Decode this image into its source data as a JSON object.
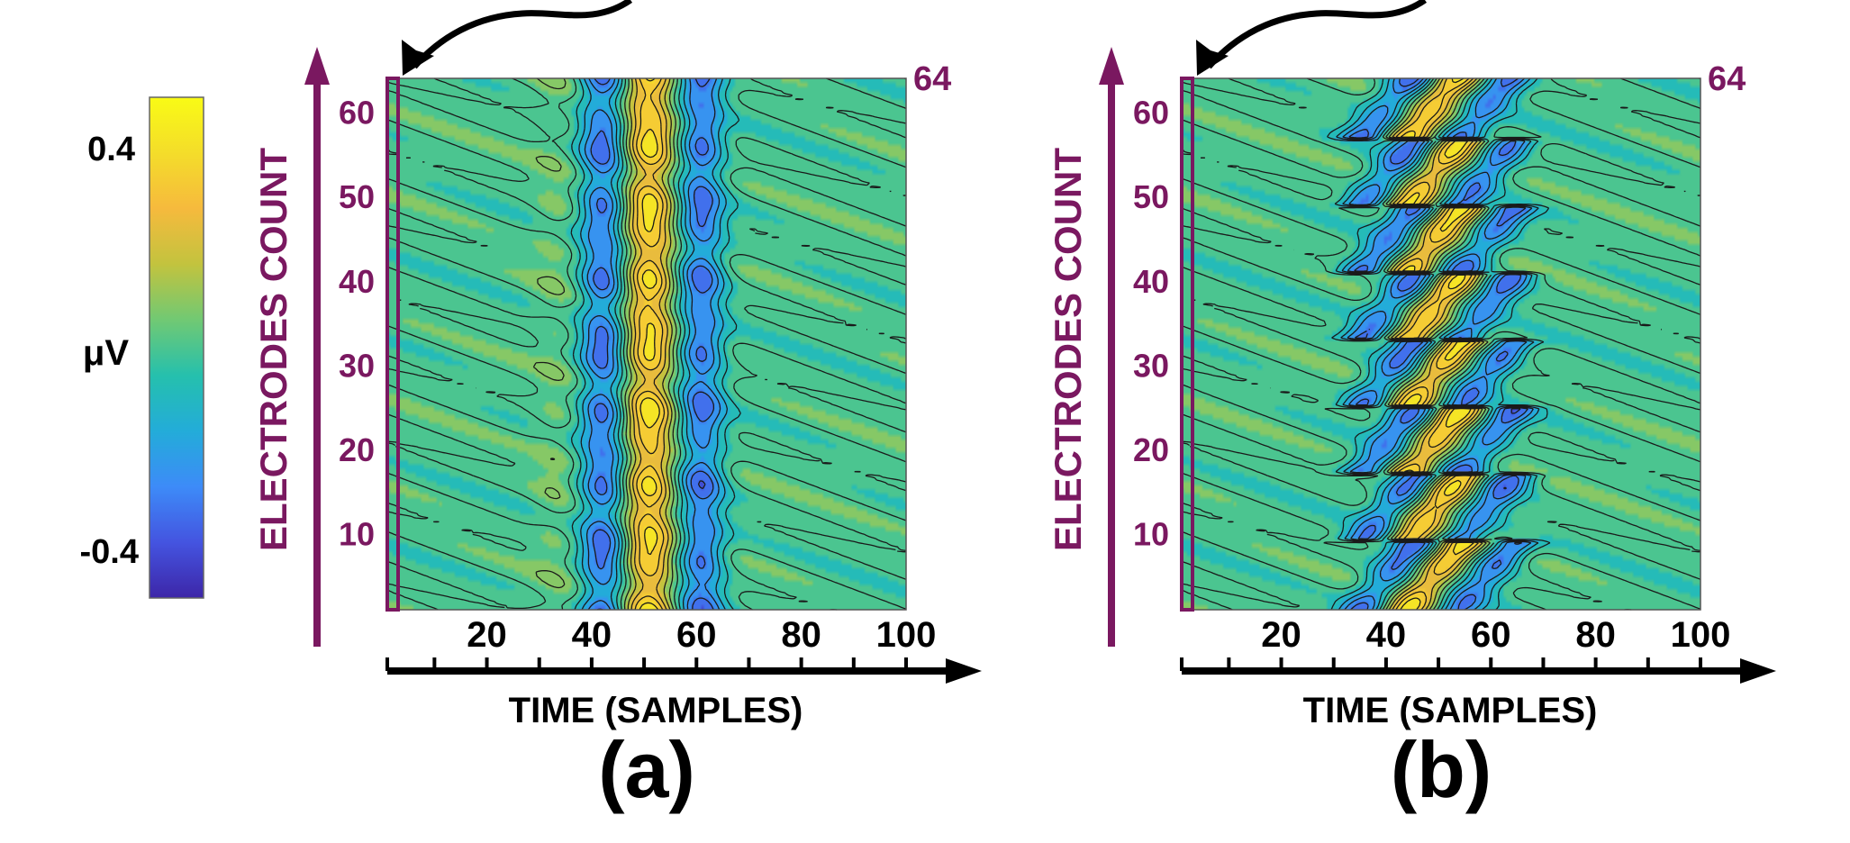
{
  "colors": {
    "accent": "#7a1860",
    "axis_black": "#000000",
    "colormap": [
      "#3d26a8",
      "#4454e0",
      "#3d8bf8",
      "#23acd9",
      "#25c0ad",
      "#71c973",
      "#c3c33e",
      "#f6ba3d",
      "#f4dd2a",
      "#f9fb15"
    ]
  },
  "colorbar": {
    "label": "μV",
    "tick_labels": [
      "0.4",
      "-0.4"
    ],
    "range": [
      -0.5,
      0.5
    ]
  },
  "chart_data": [
    {
      "type": "heatmap",
      "panel_label": "(a)",
      "xlabel": "TIME (SAMPLES)",
      "ylabel": "ELECTRODES COUNT",
      "xlim": [
        1,
        100
      ],
      "ylim": [
        1,
        64
      ],
      "x_ticks": [
        20,
        40,
        60,
        80,
        100
      ],
      "y_ticks": [
        10,
        20,
        30,
        40,
        50,
        60
      ],
      "marked_channel_label": "64",
      "contour_lines": true,
      "components": [
        {
          "center": 51,
          "amplitude": 0.42,
          "width": 3.2,
          "slope": 0
        },
        {
          "center": 42,
          "amplitude": -0.34,
          "width": 3.0,
          "slope": 0
        },
        {
          "center": 61,
          "amplitude": -0.34,
          "width": 3.0,
          "slope": 0
        },
        {
          "center": 33,
          "amplitude": 0.05,
          "width": 3.0,
          "slope": 0
        }
      ]
    },
    {
      "type": "heatmap",
      "panel_label": "(b)",
      "xlabel": "TIME (SAMPLES)",
      "ylabel": "ELECTRODES COUNT",
      "xlim": [
        1,
        100
      ],
      "ylim": [
        1,
        64
      ],
      "x_ticks": [
        20,
        40,
        60,
        80,
        100
      ],
      "y_ticks": [
        10,
        20,
        30,
        40,
        50,
        60
      ],
      "marked_channel_label": "64",
      "contour_lines": true,
      "components": [
        {
          "center": 44,
          "amplitude": 0.42,
          "width": 3.0,
          "slope": 0.62
        },
        {
          "center": 35,
          "amplitude": -0.34,
          "width": 3.0,
          "slope": 0.62
        },
        {
          "center": 54,
          "amplitude": -0.34,
          "width": 3.0,
          "slope": 0.62
        }
      ]
    }
  ]
}
